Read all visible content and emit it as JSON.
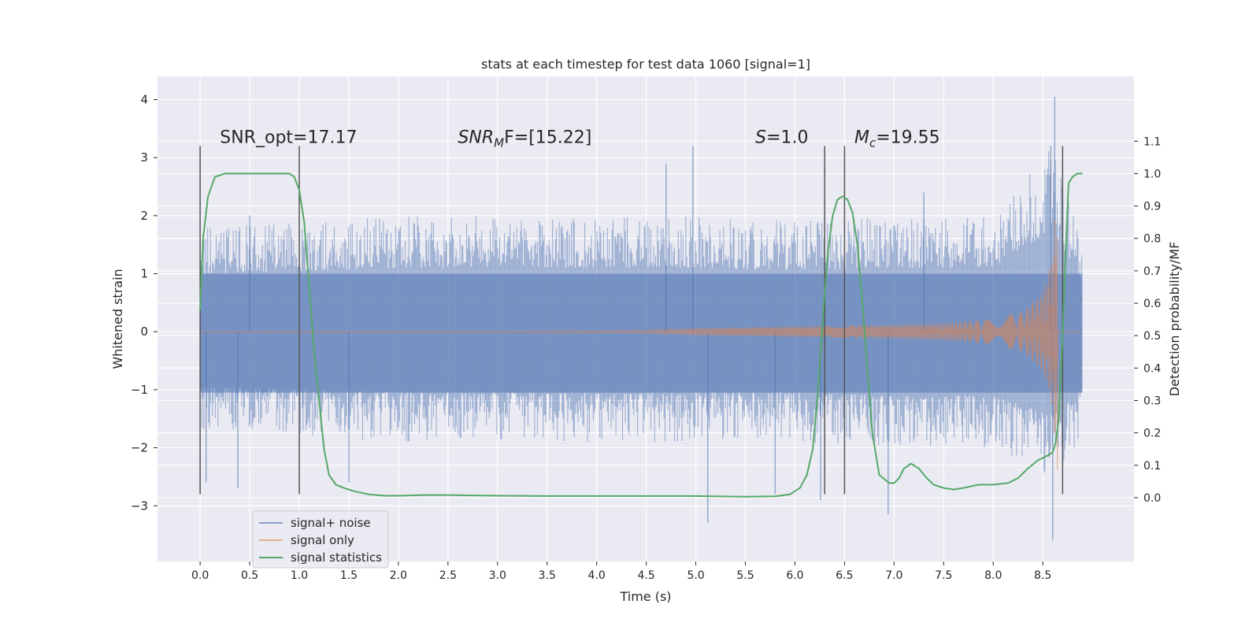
{
  "chart_data": {
    "type": "line",
    "title": "stats at each timestep for test data 1060 [signal=1]",
    "xlabel": "Time (s)",
    "ylabel": "Whitened strain",
    "y2label": "Detection probability/MF",
    "xlim": [
      -0.43,
      9.42
    ],
    "ylim": [
      -3.96,
      4.4
    ],
    "y2lim": [
      -0.197,
      1.3
    ],
    "xticks": [
      0.0,
      0.5,
      1.0,
      1.5,
      2.0,
      2.5,
      3.0,
      3.5,
      4.0,
      4.5,
      5.0,
      5.5,
      6.0,
      6.5,
      7.0,
      7.5,
      8.0,
      8.5
    ],
    "xtick_labels": [
      "0.0",
      "0.5",
      "1.0",
      "1.5",
      "2.0",
      "2.5",
      "3.0",
      "3.5",
      "4.0",
      "4.5",
      "5.0",
      "5.5",
      "6.0",
      "6.5",
      "7.0",
      "7.5",
      "8.0",
      "8.5"
    ],
    "yticks": [
      -3,
      -2,
      -1,
      0,
      1,
      2,
      3,
      4
    ],
    "ytick_labels": [
      "−3",
      "−2",
      "−1",
      "0",
      "1",
      "2",
      "3",
      "4"
    ],
    "y2ticks": [
      0.0,
      0.1,
      0.2,
      0.3,
      0.4,
      0.5,
      0.6,
      0.7,
      0.8,
      0.9,
      1.0,
      1.1
    ],
    "y2tick_labels": [
      "0.0",
      "0.1",
      "0.2",
      "0.3",
      "0.4",
      "0.5",
      "0.6",
      "0.7",
      "0.8",
      "0.9",
      "1.0",
      "1.1"
    ],
    "grid": true,
    "legend_position": "lower-left",
    "annotations": [
      {
        "label": "SNR_opt=17.17",
        "x": 0.2,
        "y": 3.2
      },
      {
        "label": "SNR",
        "sub": "M",
        "rest": "F=[15.22]",
        "x": 2.6,
        "y": 3.2
      },
      {
        "label": "S",
        "rest": "=1.0",
        "x": 5.6,
        "y": 3.2
      },
      {
        "label": "M",
        "sub": "c",
        "rest": "=19.55",
        "x": 6.6,
        "y": 3.2
      }
    ],
    "vlines": [
      0.0,
      1.0,
      6.3,
      6.5,
      8.7
    ],
    "vline_range": [
      -2.8,
      3.2
    ],
    "series": [
      {
        "name": "signal+ noise",
        "color": "#4c72b0",
        "axis": "left",
        "x_range": [
          0.0,
          8.9
        ],
        "envelope": [
          {
            "x": 0.0,
            "upper": 1.8,
            "lower": -1.7
          },
          {
            "x": 1.0,
            "upper": 1.9,
            "lower": -1.8
          },
          {
            "x": 2.0,
            "upper": 2.0,
            "lower": -1.9
          },
          {
            "x": 3.0,
            "upper": 2.0,
            "lower": -1.9
          },
          {
            "x": 4.0,
            "upper": 2.0,
            "lower": -1.9
          },
          {
            "x": 5.0,
            "upper": 2.0,
            "lower": -1.9
          },
          {
            "x": 6.0,
            "upper": 1.9,
            "lower": -1.9
          },
          {
            "x": 7.0,
            "upper": 2.0,
            "lower": -2.0
          },
          {
            "x": 8.0,
            "upper": 2.0,
            "lower": -2.0
          },
          {
            "x": 8.6,
            "upper": 3.2,
            "lower": -2.6
          },
          {
            "x": 8.9,
            "upper": 1.5,
            "lower": -1.8
          }
        ],
        "spikes": [
          {
            "x": 0.5,
            "y": 2.0
          },
          {
            "x": 0.06,
            "y": -2.6
          },
          {
            "x": 0.38,
            "y": -2.7
          },
          {
            "x": 1.5,
            "y": -2.6
          },
          {
            "x": 4.7,
            "y": 2.9
          },
          {
            "x": 4.97,
            "y": 3.2
          },
          {
            "x": 5.12,
            "y": -3.3
          },
          {
            "x": 5.8,
            "y": -2.8
          },
          {
            "x": 6.26,
            "y": -2.9
          },
          {
            "x": 6.94,
            "y": -3.15
          },
          {
            "x": 8.62,
            "y": 4.05
          },
          {
            "x": 8.6,
            "y": -3.6
          },
          {
            "x": 8.58,
            "y": 3.2
          },
          {
            "x": 7.3,
            "y": 2.4
          }
        ]
      },
      {
        "name": "signal only",
        "color": "#dd8452",
        "axis": "left",
        "x_range": [
          0.0,
          8.9
        ],
        "amplitude": [
          {
            "x": 0.0,
            "a": 0.0
          },
          {
            "x": 4.5,
            "a": 0.02
          },
          {
            "x": 5.0,
            "a": 0.06
          },
          {
            "x": 6.0,
            "a": 0.09
          },
          {
            "x": 7.0,
            "a": 0.12
          },
          {
            "x": 7.5,
            "a": 0.15
          },
          {
            "x": 8.0,
            "a": 0.22
          },
          {
            "x": 8.3,
            "a": 0.35
          },
          {
            "x": 8.5,
            "a": 0.7
          },
          {
            "x": 8.6,
            "a": 1.3
          },
          {
            "x": 8.65,
            "a": 2.7
          },
          {
            "x": 8.69,
            "a": 0.0
          }
        ]
      },
      {
        "name": "signal statistics",
        "color": "#55a868",
        "axis": "right",
        "x": [
          0.0,
          0.03,
          0.08,
          0.15,
          0.25,
          0.4,
          0.6,
          0.8,
          0.9,
          0.95,
          1.0,
          1.05,
          1.1,
          1.15,
          1.2,
          1.25,
          1.3,
          1.37,
          1.45,
          1.55,
          1.7,
          1.85,
          2.0,
          2.25,
          2.5,
          2.75,
          3.0,
          3.5,
          4.0,
          4.5,
          5.0,
          5.5,
          5.8,
          5.95,
          6.05,
          6.12,
          6.18,
          6.23,
          6.28,
          6.33,
          6.38,
          6.43,
          6.48,
          6.53,
          6.58,
          6.63,
          6.68,
          6.73,
          6.78,
          6.85,
          6.95,
          7.0,
          7.05,
          7.1,
          7.17,
          7.25,
          7.33,
          7.4,
          7.5,
          7.6,
          7.7,
          7.85,
          8.0,
          8.15,
          8.25,
          8.35,
          8.45,
          8.55,
          8.6,
          8.63,
          8.66,
          8.7,
          8.73,
          8.76,
          8.8,
          8.85,
          8.9
        ],
        "values": [
          0.58,
          0.8,
          0.93,
          0.99,
          1.0,
          1.0,
          1.0,
          1.0,
          1.0,
          0.99,
          0.95,
          0.85,
          0.65,
          0.45,
          0.3,
          0.15,
          0.07,
          0.04,
          0.03,
          0.02,
          0.01,
          0.006,
          0.006,
          0.008,
          0.008,
          0.007,
          0.006,
          0.005,
          0.005,
          0.005,
          0.005,
          0.003,
          0.004,
          0.01,
          0.03,
          0.07,
          0.15,
          0.32,
          0.55,
          0.75,
          0.87,
          0.92,
          0.93,
          0.92,
          0.88,
          0.78,
          0.6,
          0.4,
          0.2,
          0.07,
          0.045,
          0.045,
          0.06,
          0.09,
          0.105,
          0.09,
          0.06,
          0.04,
          0.03,
          0.025,
          0.03,
          0.04,
          0.04,
          0.045,
          0.06,
          0.09,
          0.115,
          0.13,
          0.14,
          0.17,
          0.24,
          0.5,
          0.75,
          0.97,
          0.99,
          1.0,
          1.0
        ]
      }
    ]
  }
}
